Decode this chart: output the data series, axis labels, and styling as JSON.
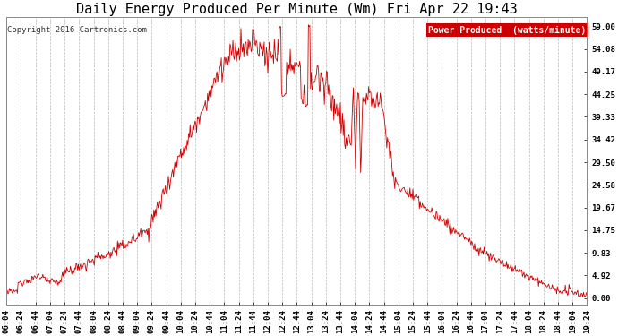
{
  "title": "Daily Energy Produced Per Minute (Wm) Fri Apr 22 19:43",
  "copyright": "Copyright 2016 Cartronics.com",
  "legend_label": "Power Produced  (watts/minute)",
  "legend_bg": "#cc0000",
  "legend_text_color": "#ffffff",
  "line_color": "#cc0000",
  "bg_color": "#ffffff",
  "grid_color": "#bbbbbb",
  "yticks": [
    0.0,
    4.92,
    9.83,
    14.75,
    19.67,
    24.58,
    29.5,
    34.42,
    39.33,
    44.25,
    49.17,
    54.08,
    59.0
  ],
  "ymax": 61.0,
  "ymin": -1.5,
  "title_fontsize": 11,
  "tick_label_fontsize": 6.5,
  "copyright_fontsize": 6.5,
  "legend_fontsize": 7
}
